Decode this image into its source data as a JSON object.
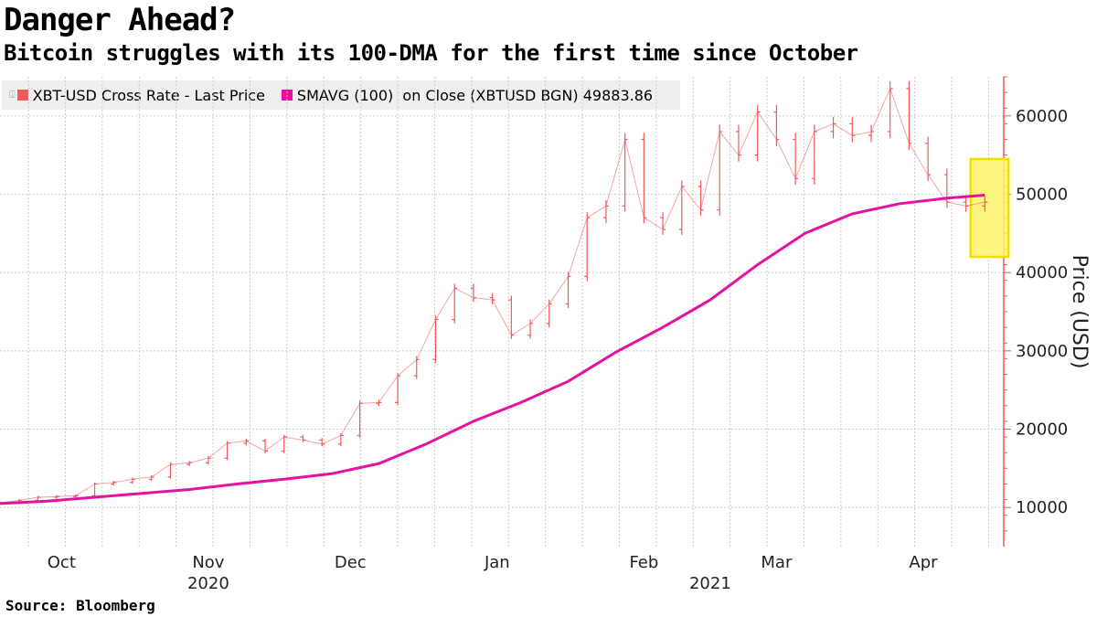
{
  "header": {
    "title": "Danger Ahead?",
    "subtitle": "Bitcoin struggles with its 100-DMA for the first time since October"
  },
  "legend": {
    "series1": "XBT-USD Cross Rate - Last Price",
    "series2": "SMAVG (100)  on Close (XBTUSD BGN) 49883.86"
  },
  "source": "Source: Bloomberg",
  "colors": {
    "price": "#f05a5a",
    "sma": "#e6119f",
    "highlight_fill": "#fff36b",
    "highlight_stroke": "#f0e000",
    "axis": "#f05a5a",
    "grid": "#cccccc"
  },
  "chart_data": {
    "type": "line",
    "title": "Danger Ahead?",
    "subtitle": "Bitcoin struggles with its 100-DMA for the first time since October",
    "ylabel": "Price (USD)",
    "ylim": [
      5000,
      65000
    ],
    "yticks": [
      10000,
      20000,
      30000,
      40000,
      50000,
      60000
    ],
    "x_range_days": [
      0,
      212
    ],
    "months": [
      {
        "label": "Oct",
        "day": 13
      },
      {
        "label": "Nov",
        "day": 44
      },
      {
        "label": "Dec",
        "day": 74
      },
      {
        "label": "Jan",
        "day": 105
      },
      {
        "label": "Feb",
        "day": 136
      },
      {
        "label": "Mar",
        "day": 164
      },
      {
        "label": "Apr",
        "day": 195
      }
    ],
    "years": [
      {
        "label": "2020",
        "day": 44
      },
      {
        "label": "2021",
        "day": 150
      }
    ],
    "series": [
      {
        "name": "XBT-USD Cross Rate - Last Price",
        "style": "ohlc-bars",
        "x": [
          0,
          4,
          8,
          12,
          16,
          20,
          24,
          28,
          32,
          36,
          40,
          44,
          48,
          52,
          56,
          60,
          64,
          68,
          72,
          76,
          80,
          84,
          88,
          92,
          96,
          100,
          104,
          108,
          112,
          116,
          120,
          124,
          128,
          132,
          136,
          140,
          144,
          148,
          152,
          156,
          160,
          164,
          168,
          172,
          176,
          180,
          184,
          188,
          192,
          196,
          200,
          204,
          208
        ],
        "values": [
          10600,
          10900,
          11300,
          11400,
          11500,
          13000,
          13200,
          13600,
          13900,
          15500,
          15700,
          16300,
          18200,
          18500,
          17200,
          19000,
          18600,
          18100,
          19200,
          23300,
          23400,
          26800,
          28900,
          34000,
          38000,
          36800,
          36500,
          32000,
          33500,
          36000,
          39500,
          47000,
          48500,
          57000,
          47000,
          45500,
          51000,
          48000,
          58000,
          55000,
          60500,
          57000,
          52000,
          58000,
          59000,
          57500,
          58000,
          63500,
          56500,
          52500,
          49000,
          48500,
          49000
        ]
      },
      {
        "name": "SMAVG (100)  on Close (XBTUSD BGN)",
        "style": "line",
        "x": [
          0,
          10,
          20,
          30,
          40,
          50,
          60,
          70,
          80,
          90,
          100,
          110,
          120,
          130,
          140,
          150,
          160,
          170,
          180,
          190,
          200,
          204,
          208
        ],
        "values": [
          10500,
          10800,
          11300,
          11800,
          12300,
          13000,
          13600,
          14300,
          15600,
          18100,
          21000,
          23400,
          26100,
          29800,
          33000,
          36500,
          41000,
          45000,
          47500,
          48800,
          49500,
          49700,
          49883.86
        ]
      }
    ],
    "annotations": [
      {
        "type": "highlight-box",
        "x_range": [
          205,
          213
        ],
        "y_range": [
          42000,
          54500
        ]
      }
    ]
  }
}
